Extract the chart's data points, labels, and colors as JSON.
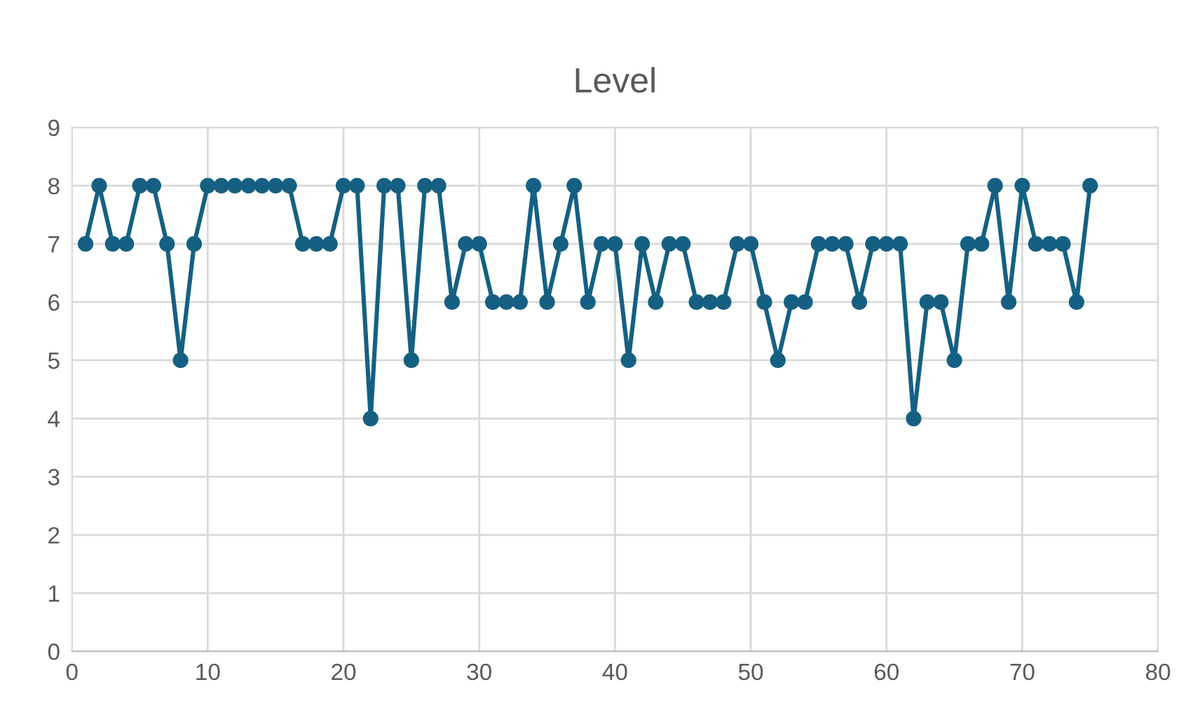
{
  "chart_data": {
    "type": "line",
    "title": "Level",
    "x": [
      1,
      2,
      3,
      4,
      5,
      6,
      7,
      8,
      9,
      10,
      11,
      12,
      13,
      14,
      15,
      16,
      17,
      18,
      19,
      20,
      21,
      22,
      23,
      24,
      25,
      26,
      27,
      28,
      29,
      30,
      31,
      32,
      33,
      34,
      35,
      36,
      37,
      38,
      39,
      40,
      41,
      42,
      43,
      44,
      45,
      46,
      47,
      48,
      49,
      50,
      51,
      52,
      53,
      54,
      55,
      56,
      57,
      58,
      59,
      60,
      61,
      62,
      63,
      64,
      65,
      66,
      67,
      68,
      69,
      70,
      71,
      72,
      73,
      74,
      75
    ],
    "series": [
      {
        "color": "#156082",
        "values": [
          7,
          8,
          7,
          7,
          8,
          8,
          7,
          5,
          7,
          8,
          8,
          8,
          8,
          8,
          8,
          8,
          7,
          7,
          7,
          8,
          8,
          4,
          8,
          8,
          5,
          8,
          8,
          6,
          7,
          7,
          6,
          6,
          6,
          8,
          6,
          7,
          8,
          6,
          7,
          7,
          5,
          7,
          6,
          7,
          7,
          6,
          6,
          6,
          7,
          7,
          6,
          5,
          6,
          6,
          7,
          7,
          7,
          6,
          7,
          7,
          7,
          4,
          6,
          6,
          5,
          7,
          7,
          8,
          6,
          8,
          7,
          7,
          7,
          6,
          8
        ]
      }
    ],
    "xlim": [
      0,
      80
    ],
    "xticks": [
      0,
      10,
      20,
      30,
      40,
      50,
      60,
      70,
      80
    ],
    "ylim": [
      0,
      9
    ],
    "yticks": [
      0,
      1,
      2,
      3,
      4,
      5,
      6,
      7,
      8,
      9
    ],
    "grid": true,
    "marker": "circle",
    "line_style": "solid"
  }
}
